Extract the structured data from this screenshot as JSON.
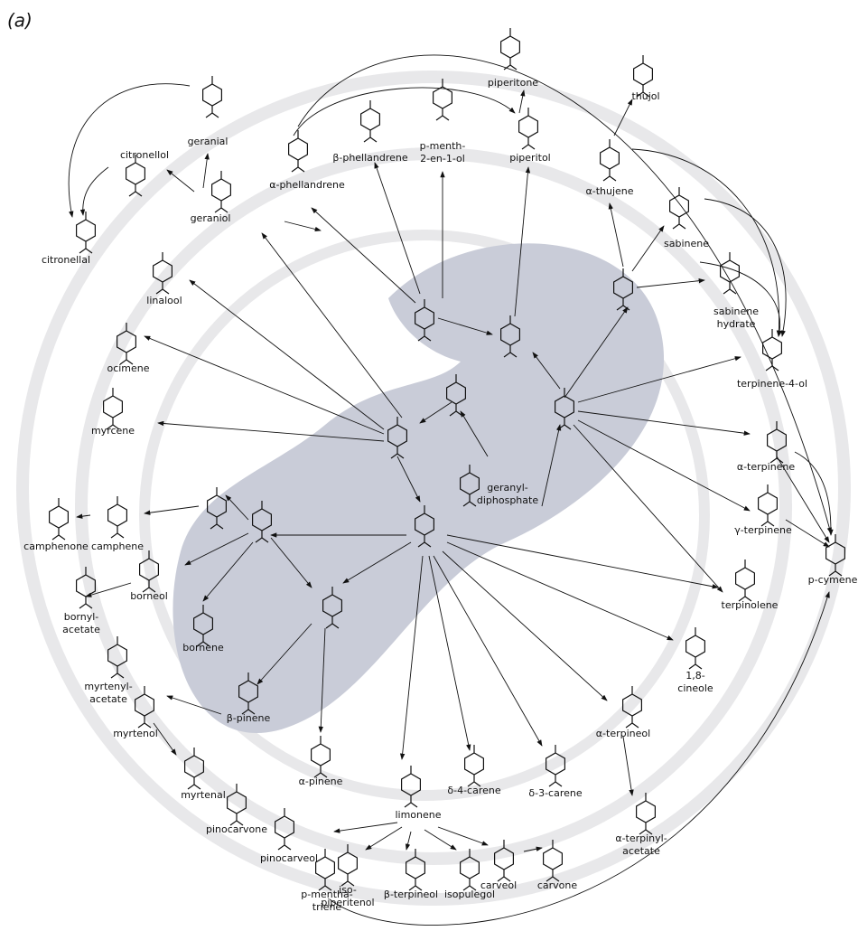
{
  "panel_label": "(a)",
  "nodes": [
    {
      "label": "geranial"
    },
    {
      "label": "citronellol"
    },
    {
      "label": "citronellal"
    },
    {
      "label": "geraniol"
    },
    {
      "label": "linalool"
    },
    {
      "label": "α-phellandrene"
    },
    {
      "label": "β-phellandrene"
    },
    {
      "label": [
        "p-menth-",
        "2-en-1-ol"
      ]
    },
    {
      "label": "piperitone"
    },
    {
      "label": "piperitol"
    },
    {
      "label": "thujol"
    },
    {
      "label": "α-thujene"
    },
    {
      "label": "sabinene"
    },
    {
      "label": [
        "sabinene",
        "hydrate"
      ]
    },
    {
      "label": "terpinene-4-ol"
    },
    {
      "label": "ocimene"
    },
    {
      "label": "myrcene"
    },
    {
      "label": "α-terpinene"
    },
    {
      "label": [
        "geranyl-",
        "diphosphate"
      ]
    },
    {
      "label": "γ-terpinene"
    },
    {
      "label": "p-cymene"
    },
    {
      "label": "camphenone"
    },
    {
      "label": "camphene"
    },
    {
      "label": "terpinolene"
    },
    {
      "label": [
        "bornyl-",
        "acetate"
      ]
    },
    {
      "label": "borneol"
    },
    {
      "label": "bornene"
    },
    {
      "label": [
        "myrtenyl-",
        "acetate"
      ]
    },
    {
      "label": [
        "1,8-",
        "cineole"
      ]
    },
    {
      "label": "β-pinene"
    },
    {
      "label": "myrtenol"
    },
    {
      "label": "α-terpineol"
    },
    {
      "label": "myrtenal"
    },
    {
      "label": "α-pinene"
    },
    {
      "label": "δ-4-carene"
    },
    {
      "label": "δ-3-carene"
    },
    {
      "label": "limonene"
    },
    {
      "label": "pinocarvone"
    },
    {
      "label": [
        "α-terpinyl-",
        "acetate"
      ]
    },
    {
      "label": "pinocarveol"
    },
    {
      "label": "carvone"
    },
    {
      "label": "carveol"
    },
    {
      "label": "isopulegol"
    },
    {
      "label": "β-terpineol"
    },
    {
      "label": [
        "iso-",
        "piperitenol"
      ]
    },
    {
      "label": [
        "p-mentha-",
        "triene"
      ]
    }
  ]
}
